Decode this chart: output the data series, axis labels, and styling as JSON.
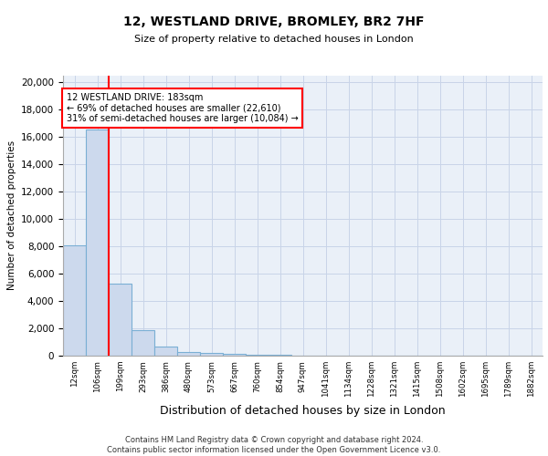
{
  "title1": "12, WESTLAND DRIVE, BROMLEY, BR2 7HF",
  "title2": "Size of property relative to detached houses in London",
  "xlabel": "Distribution of detached houses by size in London",
  "ylabel": "Number of detached properties",
  "bar_labels": [
    "12sqm",
    "106sqm",
    "199sqm",
    "293sqm",
    "386sqm",
    "480sqm",
    "573sqm",
    "667sqm",
    "760sqm",
    "854sqm",
    "947sqm",
    "1041sqm",
    "1134sqm",
    "1228sqm",
    "1321sqm",
    "1415sqm",
    "1508sqm",
    "1602sqm",
    "1695sqm",
    "1789sqm",
    "1882sqm"
  ],
  "bar_values": [
    8100,
    16500,
    5300,
    1850,
    700,
    300,
    200,
    130,
    100,
    60,
    0,
    0,
    0,
    0,
    0,
    0,
    0,
    0,
    0,
    0,
    0
  ],
  "bar_color": "#ccd9ed",
  "bar_edge_color": "#7aafd4",
  "bar_edge_width": 0.8,
  "vline_x": 2.0,
  "vline_color": "red",
  "annotation_text": "12 WESTLAND DRIVE: 183sqm\n← 69% of detached houses are smaller (22,610)\n31% of semi-detached houses are larger (10,084) →",
  "ylim": [
    0,
    20500
  ],
  "yticks": [
    0,
    2000,
    4000,
    6000,
    8000,
    10000,
    12000,
    14000,
    16000,
    18000,
    20000
  ],
  "grid_color": "#c8d4e8",
  "background_color": "#eaf0f8",
  "footer1": "Contains HM Land Registry data © Crown copyright and database right 2024.",
  "footer2": "Contains public sector information licensed under the Open Government Licence v3.0."
}
